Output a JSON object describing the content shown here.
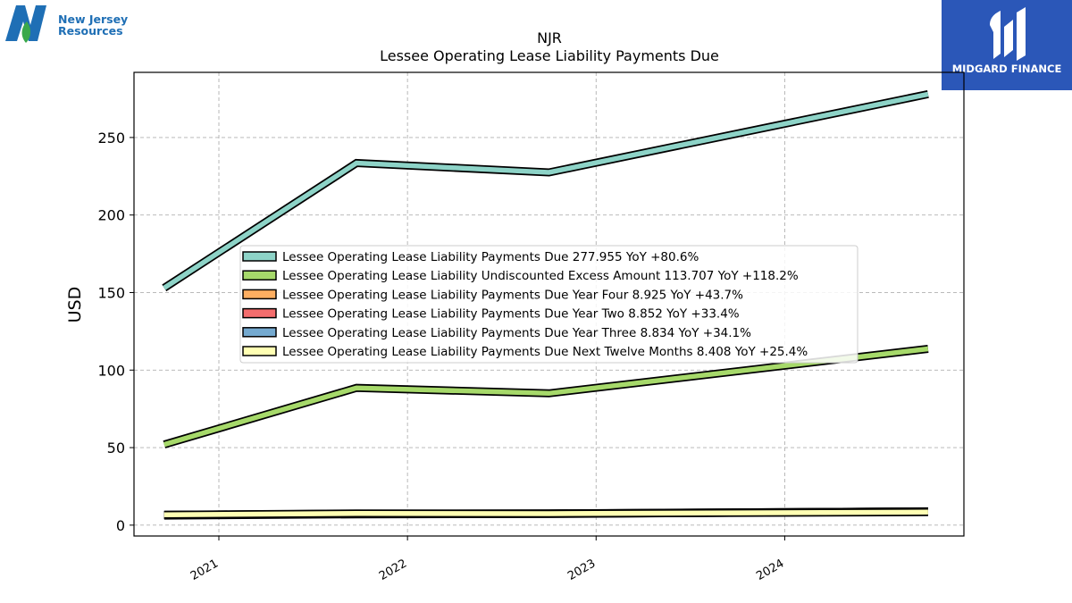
{
  "brand": {
    "company_name_line1": "New Jersey",
    "company_name_line2": "Resources",
    "company_color": "#1f6fb5",
    "leaf_color": "#3aa84a",
    "finance_brand": "MIDGARD FINANCE",
    "finance_bg": "#2b57b8"
  },
  "chart_data": {
    "type": "line",
    "title": "NJR",
    "subtitle": "Lessee Operating Lease Liability Payments Due",
    "ylabel": "USD",
    "xlabel": "",
    "ylim": [
      -7,
      292
    ],
    "yticks": [
      0,
      50,
      100,
      150,
      200,
      250
    ],
    "x_range": [
      2020.55,
      2024.95
    ],
    "xticks": [
      2021,
      2022,
      2023,
      2024
    ],
    "xtick_labels": [
      "2021",
      "2022",
      "2023",
      "2024"
    ],
    "grid": true,
    "legend_position": "center",
    "x": [
      2020.71,
      2021.73,
      2022.75,
      2024.76
    ],
    "series": [
      {
        "name": "Lessee Operating Lease Liability Payments Due",
        "legend": "Lessee Operating Lease Liability Payments Due  277.955 YoY +80.6%",
        "color": "#8dd3c7",
        "values": [
          153.0,
          233.5,
          227.5,
          277.955
        ]
      },
      {
        "name": "Lessee Operating Lease Liability Undiscounted Excess Amount",
        "legend": "Lessee Operating Lease Liability Undiscounted Excess Amount  113.707 YoY +118.2%",
        "color": "#a6d96a",
        "values": [
          52.0,
          88.5,
          85.0,
          113.707
        ]
      },
      {
        "name": "Lessee Operating Lease Liability Payments Due Year Four",
        "legend": "Lessee Operating Lease Liability Payments Due Year Four  8.925 YoY +43.7%",
        "color": "#fdae61",
        "values": [
          6.2,
          7.0,
          7.2,
          8.925
        ]
      },
      {
        "name": "Lessee Operating Lease Liability Payments Due Year Two",
        "legend": "Lessee Operating Lease Liability Payments Due Year Two  8.852 YoY +33.4%",
        "color": "#f46d6d",
        "values": [
          6.6,
          7.4,
          7.6,
          8.852
        ]
      },
      {
        "name": "Lessee Operating Lease Liability Payments Due Year Three",
        "legend": "Lessee Operating Lease Liability Payments Due Year Three  8.834 YoY +34.1%",
        "color": "#74a9cf",
        "values": [
          6.6,
          7.3,
          7.5,
          8.834
        ]
      },
      {
        "name": "Lessee Operating Lease Liability Payments Due Next Twelve Months",
        "legend": "Lessee Operating Lease Liability Payments Due Next Twelve Months  8.408 YoY +25.4%",
        "color": "#ffffb3",
        "values": [
          6.7,
          7.5,
          7.4,
          8.408
        ]
      }
    ]
  }
}
